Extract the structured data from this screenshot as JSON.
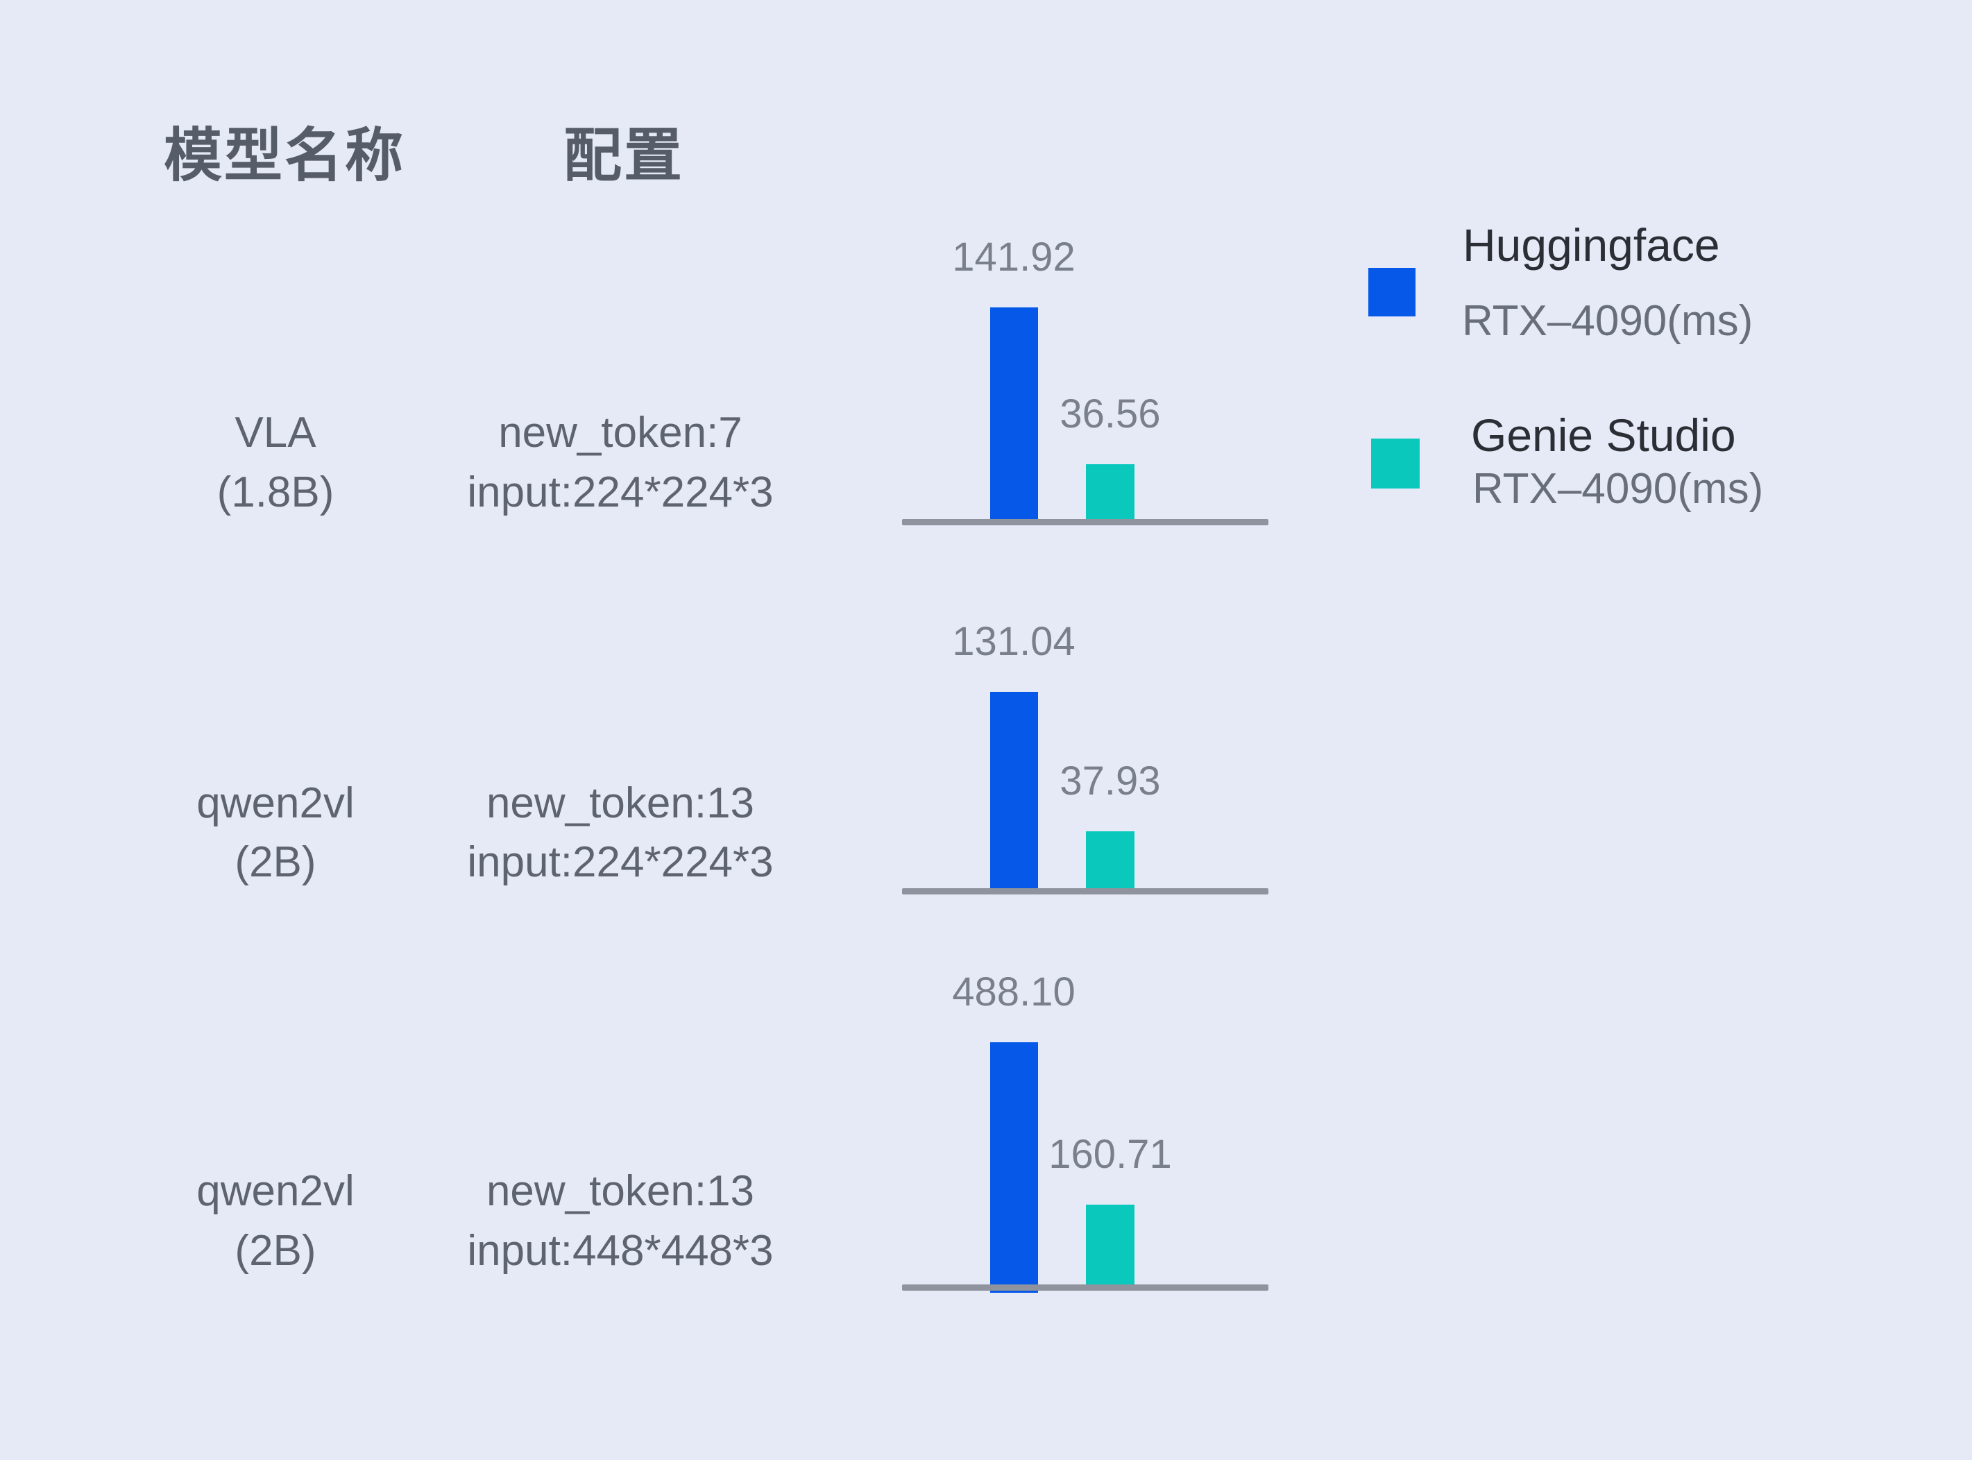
{
  "header": {
    "col_model": "模型名称",
    "col_config": "配置"
  },
  "legend": [
    {
      "label": "Huggingface",
      "sublabel": "RTX–4090(ms)",
      "color": "#0658E8"
    },
    {
      "label": "Genie Studio",
      "sublabel": "RTX–4090(ms)",
      "color": "#0BC8BD"
    }
  ],
  "chart_data": {
    "type": "bar",
    "unit": "ms",
    "legend_position": "top-right",
    "grid": false,
    "series_names": [
      "Huggingface RTX–4090(ms)",
      "Genie Studio RTX–4090(ms)"
    ],
    "colors": {
      "huggingface": "#0658E8",
      "genie_studio": "#0BC8BD",
      "axis": "#8E939D"
    },
    "rows": [
      {
        "model": "VLA",
        "size": "(1.8B)",
        "config_line1": "new_token:7",
        "config_line2": "input:224*224*3",
        "huggingface_ms": 141.92,
        "genie_studio_ms": 36.56,
        "labels": [
          "141.92",
          "36.56"
        ]
      },
      {
        "model": "qwen2vl",
        "size": "(2B)",
        "config_line1": "new_token:13",
        "config_line2": "input:224*224*3",
        "huggingface_ms": 131.04,
        "genie_studio_ms": 37.93,
        "labels": [
          "131.04",
          "37.93"
        ]
      },
      {
        "model": "qwen2vl",
        "size": "(2B)",
        "config_line1": "new_token:13",
        "config_line2": "input:448*448*3",
        "huggingface_ms": 488.1,
        "genie_studio_ms": 160.71,
        "labels": [
          "488.10",
          "160.71"
        ]
      }
    ]
  }
}
